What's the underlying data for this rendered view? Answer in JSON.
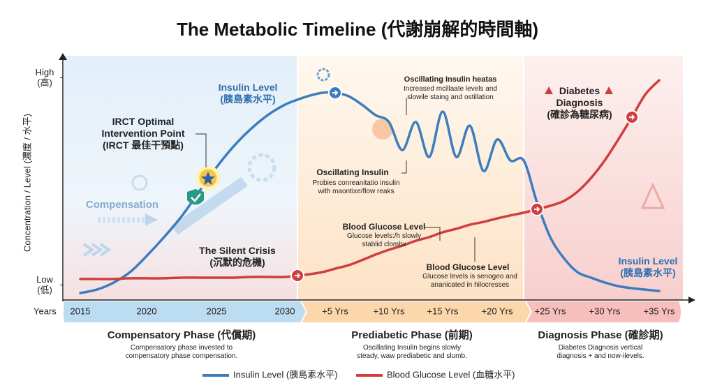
{
  "chart_data": {
    "type": "line",
    "title": "The Metabolic Timeline (代謝崩解的時間軸)",
    "y_label": "Concentration / Level (濃度 / 水平)",
    "x_label": "Years",
    "categories": [
      "2015",
      null,
      null,
      null,
      "2020",
      null,
      null,
      null,
      "2025",
      null,
      null,
      null,
      "2030",
      null,
      null,
      null,
      "+5 Yrs",
      null,
      null,
      null,
      "+10 Yrs",
      null,
      null,
      null,
      "+15 Yrs",
      null,
      null,
      null,
      "+20 Yrs",
      null,
      null,
      null,
      "+25 Yrs",
      null,
      null,
      null,
      "+30 Yrs",
      null,
      null,
      null,
      "+35 Yrs"
    ],
    "ylim": [
      0,
      100
    ],
    "yticks": [
      {
        "value": 5,
        "label": "Low\n(低)"
      },
      {
        "value": 95,
        "label": "High\n(高)"
      }
    ],
    "grid": false,
    "series": [
      {
        "name": "Insulin Level (胰島素水平)",
        "color": "#3b7dbf",
        "values": [
          1.5,
          3,
          6,
          10.6,
          17.6,
          25.8,
          34.8,
          45.5,
          56.1,
          65.2,
          72.7,
          78.8,
          83.3,
          85.5,
          87.3,
          88.5,
          88.5,
          87,
          83.3,
          78.8,
          75.8,
          63.6,
          75.8,
          60.6,
          80.3,
          60.6,
          74.2,
          54.5,
          68.2,
          59.1,
          59.1,
          40.9,
          25.8,
          16.7,
          10.6,
          8.2,
          6.1,
          4.5,
          3.6,
          3,
          2.4
        ]
      },
      {
        "name": "Blood Glucose Level (血糖水平)",
        "color": "#d03e3e",
        "values": [
          7.6,
          7.6,
          7.6,
          7.9,
          7.9,
          7.9,
          8.2,
          8.2,
          8.2,
          8.2,
          8.5,
          8.5,
          8.5,
          9.1,
          9.7,
          10.6,
          12.1,
          13.6,
          15.8,
          18.2,
          20.3,
          22.1,
          24.2,
          25.8,
          27.9,
          29.4,
          31.2,
          32.4,
          33.9,
          35.2,
          36.4,
          37.9,
          39.4,
          41.5,
          45.5,
          51.5,
          59.1,
          68.2,
          77.9,
          87.9,
          93.9
        ]
      }
    ],
    "annotations": [
      "Insulin Level\n(胰島素水平)",
      "IRCT Optimal\nIntervention Point\n(IRCT 最佳干預點)",
      "Compensation",
      "The Silent Crisis\n(沉默的危機)",
      "Oscillating Insulin heatas",
      "Increased mcillaate levels and\nslowile staing and ostillation",
      "Oscillating Insulin",
      "Probies conreanitatio insulin\nwith maontixe/flow reaks",
      "Blood Glucose Level",
      "Glucose levels:/h slowly\nstablid clombx",
      "Blood Glucose Level",
      "Glucose levels is senogeo and\nananicated in hilocresses",
      "Diabetes\nDiagnosis\n(確診為糖尿病)",
      "Insulin Level\n(胰島素水平)"
    ],
    "phases": [
      {
        "name": "Compensatory Phase (代償期)",
        "description": "Compensatory phase invested to\ncompensatory phase compensation."
      },
      {
        "name": "Prediabetic Phase (前期)",
        "description": "Oscillating Insulin begins slowly\nsteady, waw prediabetic and slumb."
      },
      {
        "name": "Diagnosis Phase (確診期)",
        "description": "Diabetes Diagnosis vertical\ndiagnosis + and now-ilevels."
      }
    ]
  }
}
